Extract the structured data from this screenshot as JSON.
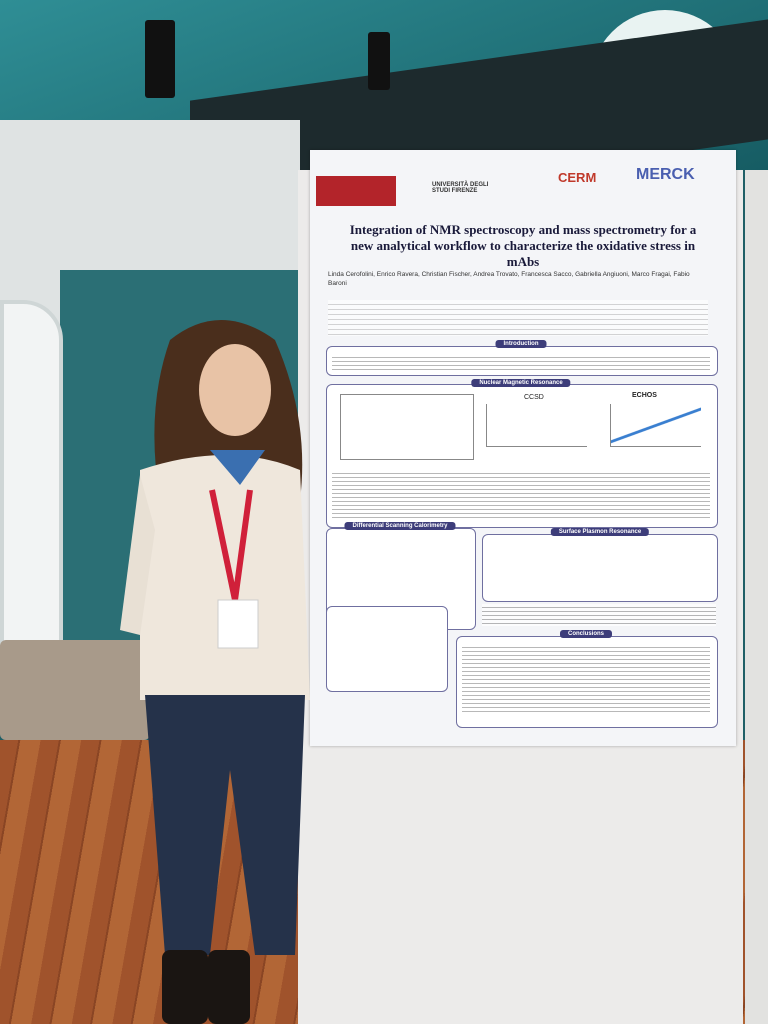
{
  "poster": {
    "logos": [
      "UNIVERSITÀ DEGLI STUDI FIRENZE",
      "CERM",
      "MERCK"
    ],
    "title": "Integration of NMR spectroscopy and mass spectrometry for a new analytical workflow to characterize the oxidative stress in mAbs",
    "authors": "Linda Cerofolini, Enrico Ravera, Christian Fischer, Andrea Trovato, Francesca Sacco, Gabriella Angiuoni, Marco Fragai, Fabio Baroni",
    "sections": [
      "Introduction",
      "Nuclear Magnetic Resonance",
      "Differential Scanning Calorimetry",
      "Surface Plasmon Resonance",
      "Conclusions"
    ],
    "plot_labels": [
      "CCSD",
      "ECHOS"
    ]
  }
}
